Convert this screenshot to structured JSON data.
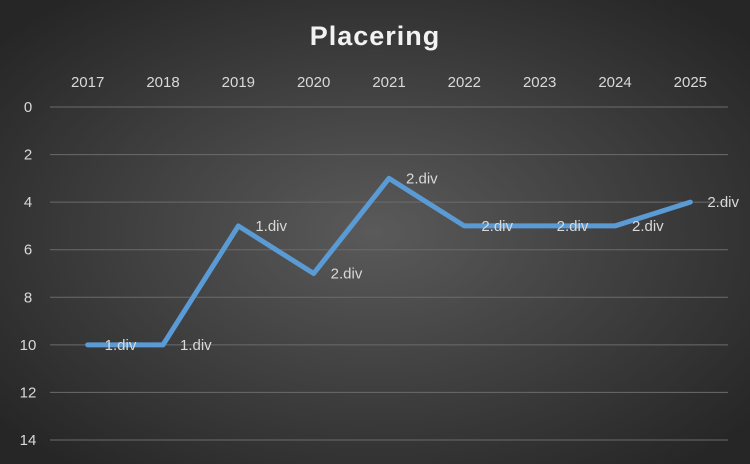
{
  "chart_data": {
    "type": "line",
    "title": "Placering",
    "categories": [
      "2017",
      "2018",
      "2019",
      "2020",
      "2021",
      "2022",
      "2023",
      "2024",
      "2025"
    ],
    "series": [
      {
        "color": "#5b9bd5",
        "values": [
          10,
          10,
          5,
          7,
          3,
          5,
          5,
          5,
          4
        ]
      }
    ],
    "point_labels": [
      "1.div",
      "1.div",
      "1.div",
      "2.div",
      "2.div",
      "2.div",
      "2.div",
      "2.div",
      "2.div"
    ],
    "ylim": [
      0,
      14
    ],
    "yticks": [
      0,
      2,
      4,
      6,
      8,
      10,
      12,
      14
    ],
    "y_reversed": true,
    "grid": true,
    "x_axis_position": "top"
  }
}
